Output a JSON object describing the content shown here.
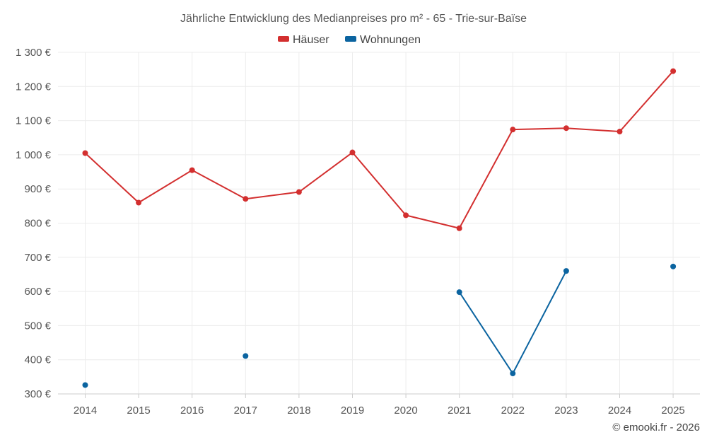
{
  "chart_data": {
    "type": "line",
    "title": "Jährliche Entwicklung des Medianpreises pro m² - 65 - Trie-sur-Baïse",
    "categories": [
      "2014",
      "2015",
      "2016",
      "2017",
      "2018",
      "2019",
      "2020",
      "2021",
      "2022",
      "2023",
      "2024",
      "2025"
    ],
    "series": [
      {
        "name": "Häuser",
        "color": "#d32f2f",
        "values": [
          1005,
          860,
          955,
          871,
          891,
          1007,
          823,
          785,
          1074,
          1078,
          1068,
          1245
        ]
      },
      {
        "name": "Wohnungen",
        "color": "#0b64a0",
        "values": [
          326,
          null,
          null,
          411,
          null,
          null,
          null,
          598,
          360,
          660,
          null,
          673
        ]
      }
    ],
    "ylim": [
      300,
      1300
    ],
    "yticks": [
      300,
      400,
      500,
      600,
      700,
      800,
      900,
      1000,
      1100,
      1200,
      1300
    ],
    "ytick_labels": [
      "300 €",
      "400 €",
      "500 €",
      "600 €",
      "700 €",
      "800 €",
      "900 €",
      "1 000 €",
      "1 100 €",
      "1 200 €",
      "1 300 €"
    ],
    "grid": true,
    "legend_position": "top-center"
  },
  "credit": "© emooki.fr - 2026"
}
